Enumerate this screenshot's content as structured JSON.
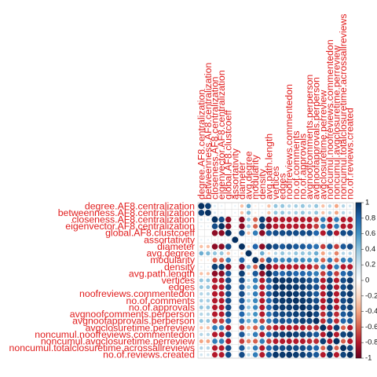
{
  "chart_data": {
    "type": "heatmap",
    "title": "",
    "legend_position": "right",
    "color_scale": {
      "min": -1,
      "max": 1,
      "low_color": "#67001f",
      "mid_color": "#ffffff",
      "high_color": "#053061",
      "ticks": [
        "1",
        "0.8",
        "0.6",
        "0.4",
        "0.2",
        "0",
        "-0.2",
        "-0.4",
        "-0.6",
        "-0.8",
        "-1"
      ]
    },
    "variables": [
      "degree.AF8.centralization",
      "betweenness.AF8.centralization",
      "closeness.AF8.centralization",
      "eigenvector.AF8.centralization",
      "global.AF8.clustcoeff",
      "assortativity",
      "diameter",
      "avg.degree",
      "modularity",
      "density",
      "avg.path.length",
      "vertices",
      "edges",
      "noofreviews.commentedon",
      "no.of.comments",
      "no.of.approvals",
      "avgnoofcomments.perperson",
      "avgnoofapprovals.perperson",
      "avgclosuretime.perreview",
      "noncumul.noofreviews.commentedon",
      "noncumul.avgclosuretime.perreview",
      "noncumul.totalclosuretime.acrossallreviews",
      "no.of.reviews.created"
    ],
    "matrix": [
      [
        1,
        0.95,
        0.15,
        0.1,
        0,
        0.1,
        -0.3,
        0.5,
        -0.1,
        0.1,
        -0.3,
        0.4,
        0.4,
        0.3,
        0.35,
        0.4,
        0.3,
        0.4,
        -0.3,
        0.3,
        -0.4,
        0.3,
        0.2
      ],
      [
        0.95,
        1,
        0.15,
        0.1,
        0,
        0.1,
        -0.3,
        0.45,
        -0.1,
        0.1,
        -0.3,
        0.4,
        0.4,
        0.3,
        0.35,
        0.4,
        0.3,
        0.4,
        -0.3,
        0.3,
        -0.4,
        0.3,
        0.2
      ],
      [
        0.15,
        0.15,
        1,
        0.9,
        -0.9,
        0.1,
        -0.9,
        0.4,
        -0.6,
        0.95,
        -0.9,
        -0.8,
        -0.8,
        -0.8,
        -0.8,
        -0.8,
        -0.8,
        -0.7,
        0.7,
        -0.8,
        0.7,
        -0.8,
        -0.8
      ],
      [
        0.1,
        0.1,
        0.9,
        1,
        -0.9,
        0.1,
        -0.9,
        0.4,
        -0.6,
        0.95,
        -0.9,
        -0.8,
        -0.8,
        -0.8,
        -0.8,
        -0.8,
        -0.8,
        -0.7,
        0.7,
        -0.8,
        0.7,
        -0.8,
        -0.8
      ],
      [
        0,
        0,
        -0.9,
        -0.9,
        1,
        -0.1,
        0.9,
        -0.3,
        0.7,
        -0.9,
        0.85,
        0.9,
        0.9,
        0.9,
        0.9,
        0.9,
        0.9,
        0.8,
        -0.8,
        0.9,
        -0.8,
        0.9,
        0.9
      ],
      [
        0.1,
        0.1,
        0.1,
        0.1,
        -0.1,
        1,
        0,
        0.1,
        -0.1,
        0.1,
        0,
        0,
        0,
        0,
        0,
        0,
        0,
        0,
        0,
        0,
        0,
        0,
        0
      ],
      [
        -0.3,
        -0.3,
        -0.9,
        -0.9,
        0.9,
        0,
        1,
        -0.2,
        0.8,
        -0.9,
        0.95,
        0.9,
        0.85,
        0.9,
        0.85,
        0.85,
        0.8,
        0.75,
        -0.7,
        0.85,
        -0.7,
        0.85,
        0.9
      ],
      [
        0.5,
        0.45,
        0.4,
        0.4,
        -0.3,
        0.1,
        -0.2,
        1,
        -0.1,
        0.5,
        -0.2,
        0.3,
        0.4,
        0.3,
        0.4,
        0.4,
        0.4,
        0.5,
        -0.4,
        0.3,
        -0.5,
        0.3,
        0.3
      ],
      [
        -0.1,
        -0.1,
        -0.6,
        -0.6,
        0.7,
        -0.1,
        0.8,
        -0.1,
        1,
        -0.6,
        0.85,
        0.7,
        0.65,
        0.7,
        0.65,
        0.65,
        0.6,
        0.6,
        -0.6,
        0.7,
        -0.6,
        0.7,
        0.7
      ],
      [
        0.1,
        0.1,
        0.95,
        0.95,
        -0.9,
        0.1,
        -0.9,
        0.5,
        -0.6,
        1,
        -0.9,
        -0.8,
        -0.8,
        -0.8,
        -0.8,
        -0.8,
        -0.8,
        -0.7,
        0.7,
        -0.8,
        0.7,
        -0.8,
        -0.8
      ],
      [
        -0.3,
        -0.3,
        -0.9,
        -0.9,
        0.85,
        0,
        0.95,
        -0.2,
        0.85,
        -0.9,
        1,
        0.85,
        0.8,
        0.85,
        0.8,
        0.8,
        0.75,
        0.7,
        -0.7,
        0.8,
        -0.7,
        0.8,
        0.85
      ],
      [
        0.4,
        0.4,
        -0.8,
        -0.8,
        0.9,
        0,
        0.9,
        0.3,
        0.7,
        -0.8,
        0.85,
        1,
        0.98,
        0.98,
        0.95,
        0.95,
        0.9,
        0.85,
        -0.8,
        0.95,
        -0.8,
        0.9,
        0.98
      ],
      [
        0.4,
        0.4,
        -0.8,
        -0.8,
        0.9,
        0,
        0.85,
        0.4,
        0.65,
        -0.8,
        0.8,
        0.98,
        1,
        0.97,
        0.97,
        0.96,
        0.92,
        0.88,
        -0.8,
        0.95,
        -0.8,
        0.9,
        0.97
      ],
      [
        0.3,
        0.3,
        -0.8,
        -0.8,
        0.9,
        0,
        0.9,
        0.3,
        0.7,
        -0.8,
        0.85,
        0.98,
        0.97,
        1,
        0.97,
        0.96,
        0.92,
        0.85,
        -0.8,
        0.97,
        -0.8,
        0.92,
        0.98
      ],
      [
        0.35,
        0.35,
        -0.8,
        -0.8,
        0.9,
        0,
        0.85,
        0.4,
        0.65,
        -0.8,
        0.8,
        0.95,
        0.97,
        0.97,
        1,
        0.97,
        0.95,
        0.9,
        -0.8,
        0.95,
        -0.8,
        0.9,
        0.96
      ],
      [
        0.4,
        0.4,
        -0.8,
        -0.8,
        0.9,
        0,
        0.85,
        0.4,
        0.65,
        -0.8,
        0.8,
        0.95,
        0.96,
        0.96,
        0.97,
        1,
        0.93,
        0.95,
        -0.8,
        0.94,
        -0.8,
        0.9,
        0.95
      ],
      [
        0.3,
        0.3,
        -0.8,
        -0.8,
        0.9,
        0,
        0.8,
        0.4,
        0.6,
        -0.8,
        0.75,
        0.9,
        0.92,
        0.92,
        0.95,
        0.93,
        1,
        0.92,
        -0.75,
        0.9,
        -0.75,
        0.85,
        0.9
      ],
      [
        0.4,
        0.4,
        -0.7,
        -0.7,
        0.8,
        0,
        0.75,
        0.5,
        0.6,
        -0.7,
        0.7,
        0.85,
        0.88,
        0.85,
        0.9,
        0.95,
        0.92,
        1,
        -0.75,
        0.85,
        -0.75,
        0.8,
        0.85
      ],
      [
        -0.3,
        -0.3,
        0.7,
        0.7,
        -0.8,
        0,
        -0.7,
        -0.4,
        -0.6,
        0.7,
        -0.7,
        -0.8,
        -0.8,
        -0.8,
        -0.8,
        -0.8,
        -0.75,
        -0.75,
        1,
        -0.8,
        0.95,
        -0.6,
        -0.8
      ],
      [
        0.3,
        0.3,
        -0.8,
        -0.8,
        0.9,
        0,
        0.85,
        0.3,
        0.7,
        -0.8,
        0.8,
        0.95,
        0.95,
        0.97,
        0.95,
        0.94,
        0.9,
        0.85,
        -0.8,
        1,
        -0.8,
        0.93,
        0.97
      ],
      [
        -0.4,
        -0.4,
        0.7,
        0.7,
        -0.8,
        0,
        -0.7,
        -0.5,
        -0.6,
        0.7,
        -0.7,
        -0.8,
        -0.8,
        -0.8,
        -0.8,
        -0.8,
        -0.75,
        -0.75,
        0.95,
        -0.8,
        1,
        -0.6,
        -0.8
      ],
      [
        0.3,
        0.3,
        -0.8,
        -0.8,
        0.9,
        0,
        0.85,
        0.3,
        0.7,
        -0.8,
        0.8,
        0.9,
        0.9,
        0.92,
        0.9,
        0.9,
        0.85,
        0.8,
        -0.6,
        0.93,
        -0.6,
        1,
        0.93
      ],
      [
        0.2,
        0.2,
        -0.8,
        -0.8,
        0.9,
        0,
        0.9,
        0.3,
        0.7,
        -0.8,
        0.85,
        0.98,
        0.97,
        0.98,
        0.96,
        0.95,
        0.9,
        0.85,
        -0.8,
        0.97,
        -0.8,
        0.93,
        1
      ]
    ]
  }
}
